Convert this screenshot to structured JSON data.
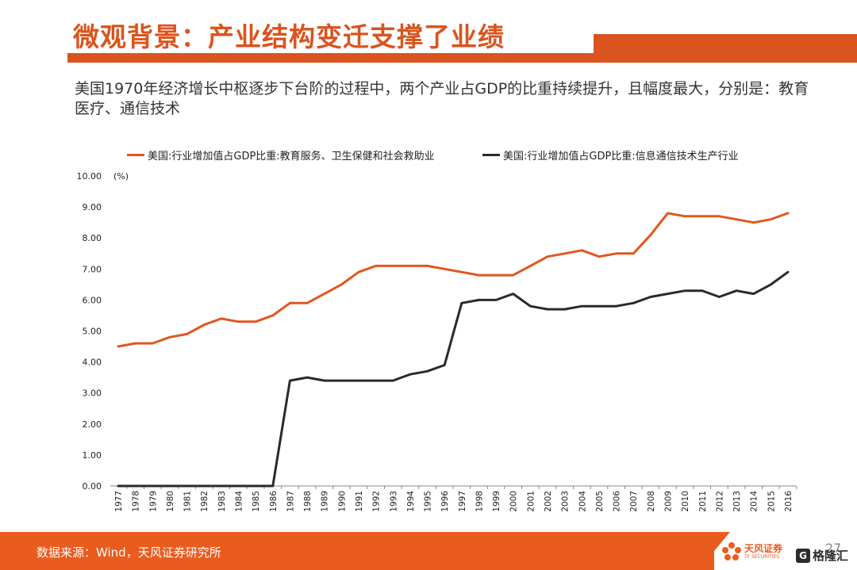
{
  "header": {
    "title": "微观背景：产业结构变迁支撑了业绩",
    "subtitle": "美国1970年经济增长中枢逐步下台阶的过程中，两个产业占GDP的比重持续提升，且幅度最大，分别是：教育医疗、通信技术"
  },
  "footer": {
    "source": "数据来源：Wind，天风证券研究所",
    "page_number": "27",
    "logo_name": "天风证券",
    "logo_sub": "TF SECURITIES",
    "watermark_glyph": "G",
    "watermark_text": "格隆汇"
  },
  "chart_data": {
    "type": "line",
    "unit_label": "(%)",
    "ylim": [
      0,
      10
    ],
    "y_ticks": [
      "0.00",
      "1.00",
      "2.00",
      "3.00",
      "4.00",
      "5.00",
      "6.00",
      "7.00",
      "8.00",
      "9.00",
      "10.00"
    ],
    "legend_position": "top",
    "grid": false,
    "categories": [
      "1977",
      "1978",
      "1979",
      "1980",
      "1981",
      "1982",
      "1983",
      "1984",
      "1985",
      "1986",
      "1987",
      "1988",
      "1989",
      "1990",
      "1991",
      "1992",
      "1993",
      "1994",
      "1995",
      "1996",
      "1997",
      "1998",
      "1999",
      "2000",
      "2001",
      "2002",
      "2003",
      "2004",
      "2005",
      "2006",
      "2007",
      "2008",
      "2009",
      "2010",
      "2011",
      "2012",
      "2013",
      "2014",
      "2015",
      "2016"
    ],
    "series": [
      {
        "name": "美国:行业增加值占GDP比重:教育服务、卫生保健和社会救助业",
        "color": "#e0571e",
        "values": [
          4.5,
          4.6,
          4.6,
          4.8,
          4.9,
          5.2,
          5.4,
          5.3,
          5.3,
          5.5,
          5.9,
          5.9,
          6.2,
          6.5,
          6.9,
          7.1,
          7.1,
          7.1,
          7.1,
          7.0,
          6.9,
          6.8,
          6.8,
          6.8,
          7.1,
          7.4,
          7.5,
          7.6,
          7.4,
          7.5,
          7.5,
          8.1,
          8.8,
          8.7,
          8.7,
          8.7,
          8.6,
          8.5,
          8.6,
          8.8
        ]
      },
      {
        "name": "美国:行业增加值占GDP比重:信息通信技术生产行业",
        "color": "#2a2a2a",
        "values": [
          0,
          0,
          0,
          0,
          0,
          0,
          0,
          0,
          0,
          0,
          3.4,
          3.5,
          3.4,
          3.4,
          3.4,
          3.4,
          3.4,
          3.6,
          3.7,
          3.9,
          5.9,
          6.0,
          6.0,
          6.2,
          5.8,
          5.7,
          5.7,
          5.8,
          5.8,
          5.8,
          5.9,
          6.1,
          6.2,
          6.3,
          6.3,
          6.1,
          6.3,
          6.2,
          6.5,
          6.9
        ]
      }
    ]
  }
}
